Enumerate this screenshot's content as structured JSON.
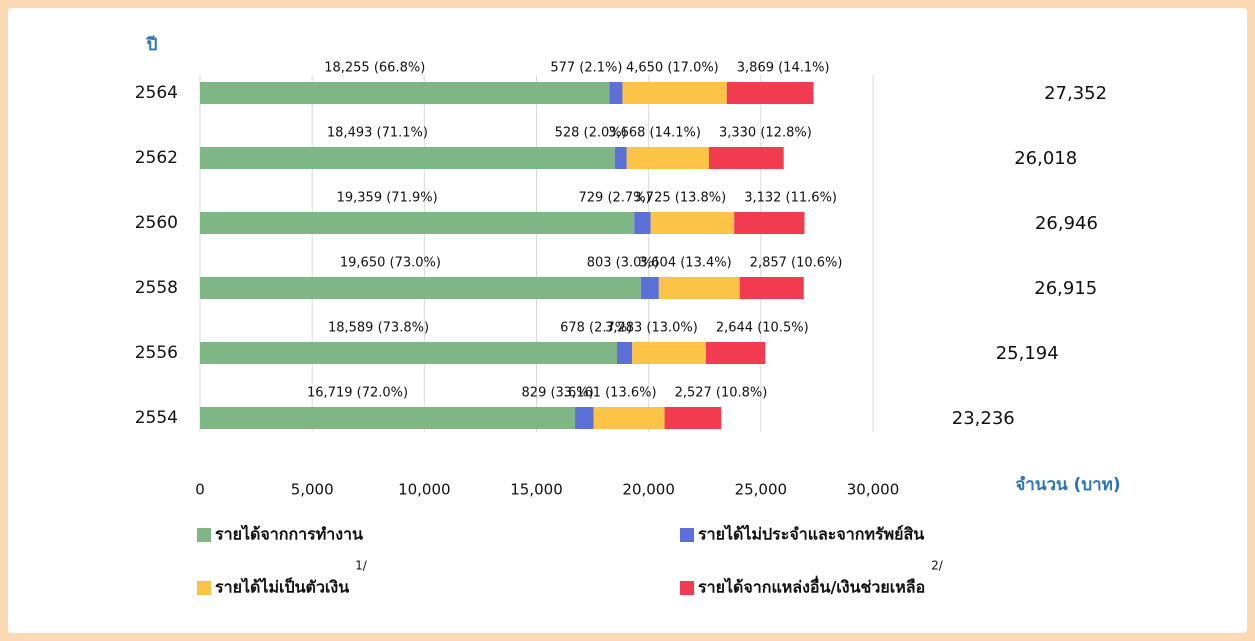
{
  "chart_data": {
    "type": "stacked-bar-horizontal",
    "y_axis_label": "ปี",
    "x_axis_label": "จำนวน (บาท)",
    "categories": [
      "2564",
      "2562",
      "2560",
      "2558",
      "2556",
      "2554"
    ],
    "series": [
      {
        "name": "รายได้จากการทำงาน",
        "color": "#7fb685",
        "values": [
          18255,
          18493,
          19359,
          19650,
          18589,
          16719
        ],
        "value_labels": [
          "18,255 (66.8%)",
          "18,493 (71.1%)",
          "19,359 (71.9%)",
          "19,650 (73.0%)",
          "18,589 (73.8%)",
          "16,719 (72.0%)"
        ]
      },
      {
        "name": "รายได้ไม่ประจำและจากทรัพย์สิน",
        "color": "#5b6fd6",
        "values": [
          577,
          528,
          729,
          803,
          678,
          829
        ],
        "value_labels": [
          "577 (2.1%)",
          "528 (2.0%)",
          "729 (2.7%)",
          "803 (3.0%)",
          "678 (2.7%)",
          "829 (3.6%)"
        ]
      },
      {
        "name": "รายได้ไม่เป็นตัวเงิน",
        "footnote": "1/",
        "color": "#fcc447",
        "values": [
          4650,
          3668,
          3725,
          3604,
          3283,
          3161
        ],
        "value_labels": [
          "4,650 (17.0%)",
          "3,668 (14.1%)",
          "3,725 (13.8%)",
          "3,604 (13.4%)",
          "3,283 (13.0%)",
          "3,161 (13.6%)"
        ]
      },
      {
        "name": "รายได้จากแหล่งอื่น/เงินช่วยเหลือ",
        "footnote": "2/",
        "color": "#f23b50",
        "values": [
          3869,
          3330,
          3132,
          2857,
          2644,
          2527
        ],
        "value_labels": [
          "3,869 (14.1%)",
          "3,330 (12.8%)",
          "3,132 (11.6%)",
          "2,857 (10.6%)",
          "2,644 (10.5%)",
          "2,527 (10.8%)"
        ]
      }
    ],
    "totals": [
      {
        "value": 27352,
        "label": "27,352"
      },
      {
        "value": 26018,
        "label": "26,018"
      },
      {
        "value": 26946,
        "label": "26,946"
      },
      {
        "value": 26915,
        "label": "26,915"
      },
      {
        "value": 25194,
        "label": "25,194"
      },
      {
        "value": 23236,
        "label": "23,236"
      }
    ],
    "xlim": [
      0,
      30000
    ],
    "xticks": [
      0,
      {
        "value": 5000,
        "label": "5,000"
      },
      {
        "value": 10000,
        "label": "10,000"
      },
      {
        "value": 15000,
        "label": "15,000"
      },
      {
        "value": 20000,
        "label": "20,000"
      },
      {
        "value": 25000,
        "label": "25,000"
      },
      {
        "value": 30000,
        "label": "30,000"
      }
    ],
    "grid": true
  }
}
